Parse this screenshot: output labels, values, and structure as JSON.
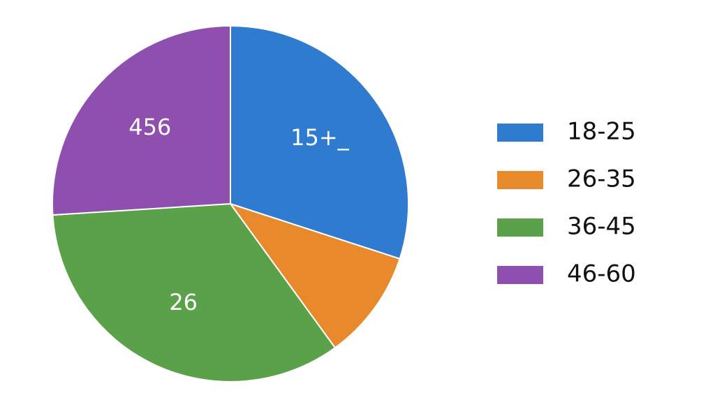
{
  "chart_data": {
    "type": "pie",
    "categories": [
      "18-25",
      "26-35",
      "36-45",
      "46-60"
    ],
    "values": [
      30,
      10,
      34,
      26
    ],
    "colors": [
      "#2e7bcf",
      "#e8892b",
      "#5ba14a",
      "#8e4fae"
    ],
    "slice_texts": [
      "15+_",
      null,
      "26",
      "456"
    ],
    "legend": "right"
  }
}
